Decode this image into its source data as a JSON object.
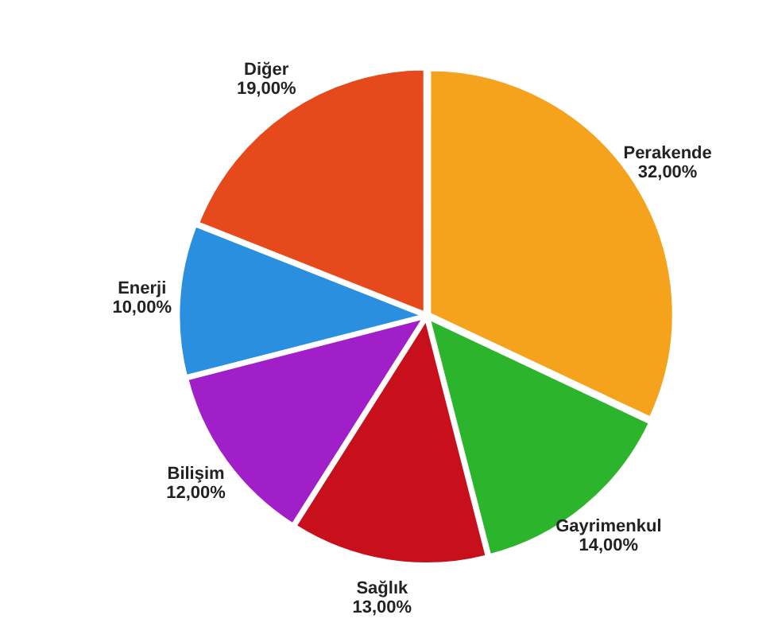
{
  "chart_data": {
    "type": "pie",
    "categories": [
      "Perakende",
      "Gayrimenkul",
      "Sağlık",
      "Bilişim",
      "Enerji",
      "Diğer"
    ],
    "values": [
      32,
      14,
      13,
      12,
      10,
      19
    ],
    "colors": [
      "#f5a21c",
      "#2cb52c",
      "#c8101c",
      "#a01fc8",
      "#2b8fe0",
      "#e64a1c"
    ],
    "value_labels": [
      "32,00%",
      "14,00%",
      "13,00%",
      "12,00%",
      "10,00%",
      "19,00%"
    ]
  }
}
